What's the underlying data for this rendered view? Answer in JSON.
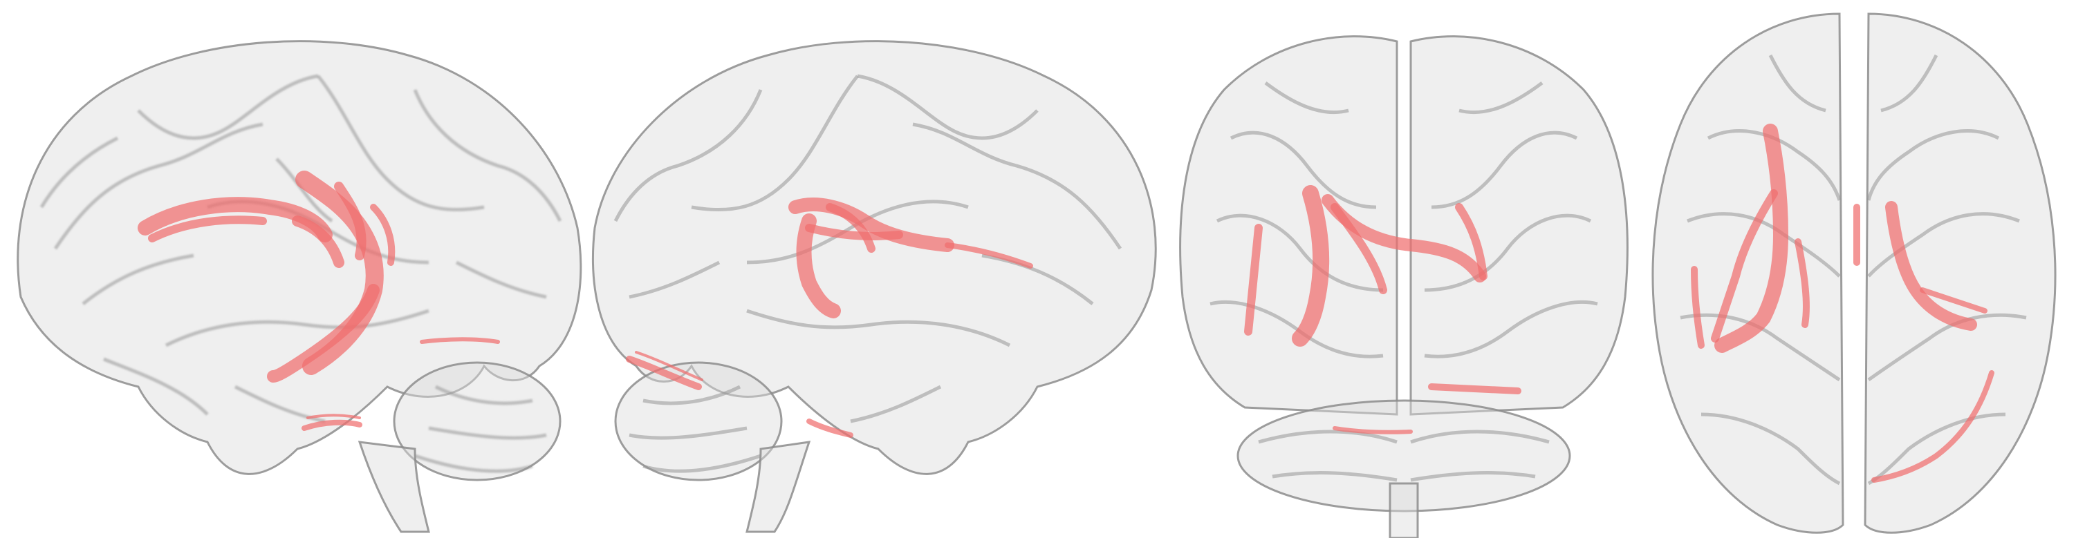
{
  "figure": {
    "background": "#ffffff",
    "brain_fill": "#d9d9d9",
    "brain_stroke": "#9a9a9a",
    "tract_color": "#f08080",
    "views": [
      {
        "id": "left-lateral",
        "orientation": "sagittal-left"
      },
      {
        "id": "right-lateral",
        "orientation": "sagittal-right"
      },
      {
        "id": "posterior",
        "orientation": "coronal-posterior"
      },
      {
        "id": "superior",
        "orientation": "axial-superior"
      }
    ]
  }
}
